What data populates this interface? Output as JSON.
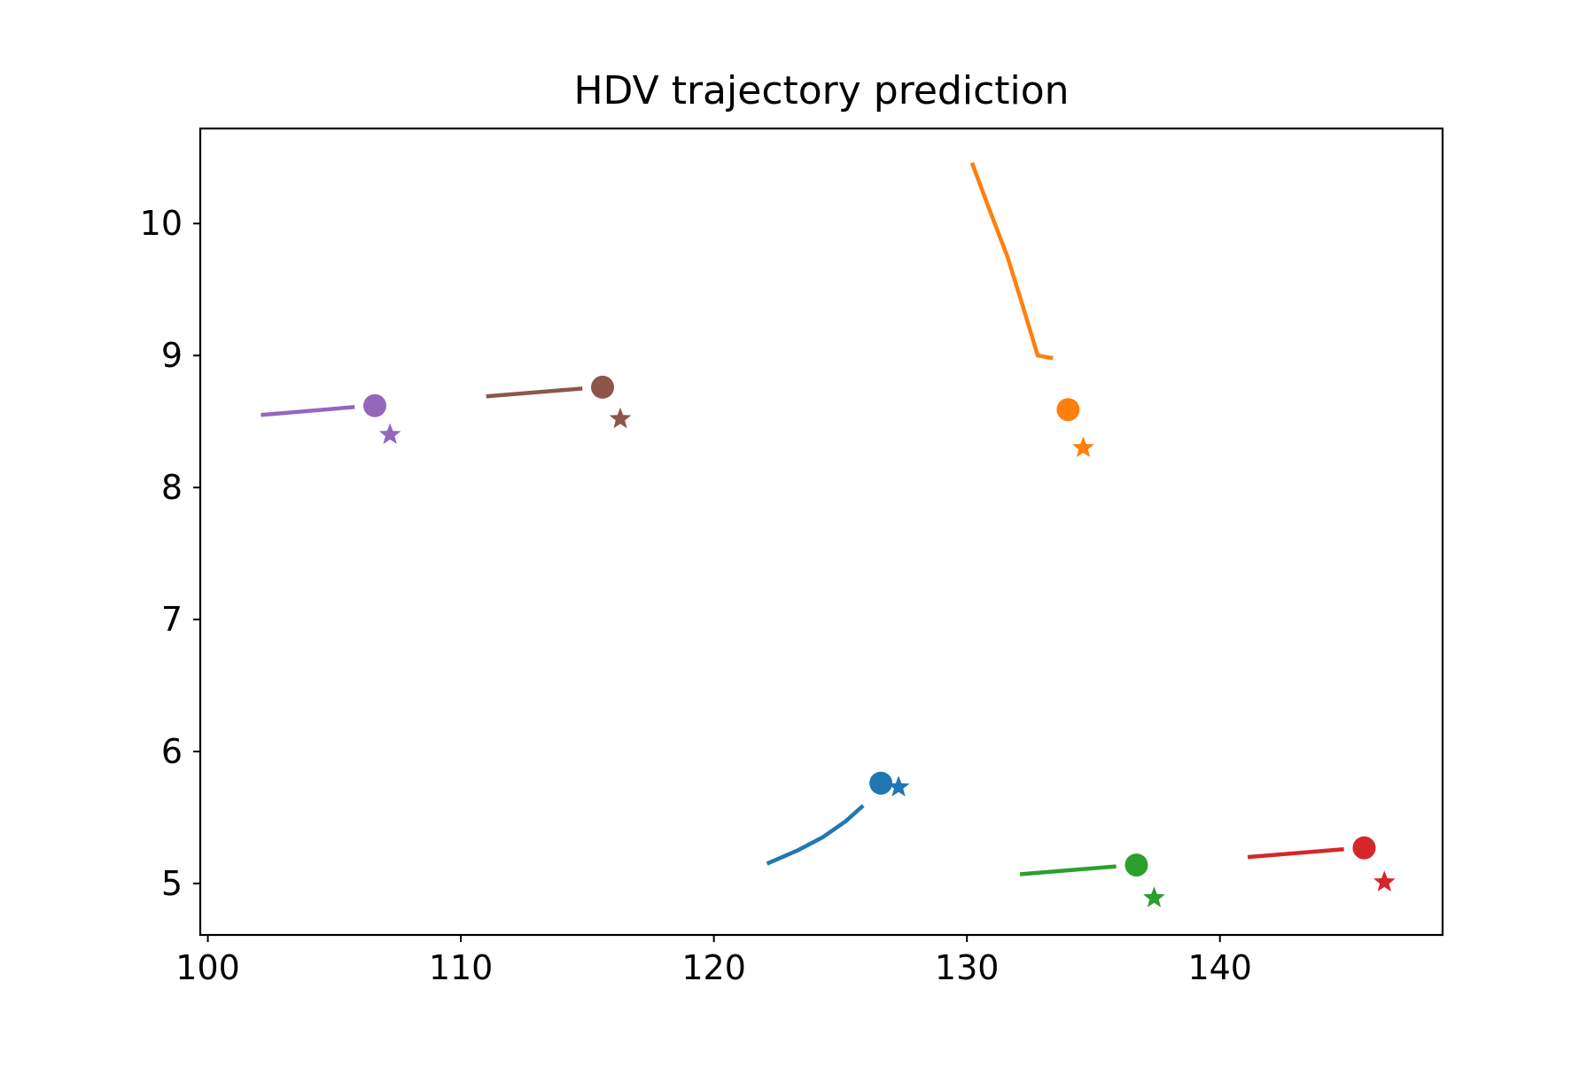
{
  "chart_data": {
    "type": "line",
    "title": "HDV trajectory prediction",
    "xlabel": "",
    "ylabel": "",
    "xlim": [
      99.7,
      148.8
    ],
    "ylim": [
      4.61,
      10.72
    ],
    "xticks": [
      100,
      110,
      120,
      130,
      140
    ],
    "yticks": [
      5,
      6,
      7,
      8,
      9,
      10
    ],
    "grid": false,
    "legend": "none",
    "series": [
      {
        "color": "#1f77b4",
        "line": [
          [
            122.1,
            5.15
          ],
          [
            123.3,
            5.25
          ],
          [
            124.3,
            5.35
          ],
          [
            125.2,
            5.47
          ],
          [
            125.9,
            5.59
          ]
        ],
        "current": [
          126.6,
          5.76
        ],
        "target": [
          127.3,
          5.73
        ]
      },
      {
        "color": "#ff7f0e",
        "line": [
          [
            130.2,
            10.46
          ],
          [
            130.9,
            10.1
          ],
          [
            131.6,
            9.75
          ],
          [
            132.2,
            9.38
          ],
          [
            132.8,
            9.0
          ],
          [
            133.4,
            8.98
          ]
        ],
        "current": [
          134.0,
          8.59
        ],
        "target": [
          134.6,
          8.3
        ]
      },
      {
        "color": "#2ca02c",
        "line": [
          [
            132.1,
            5.07
          ],
          [
            135.9,
            5.13
          ]
        ],
        "current": [
          136.7,
          5.14
        ],
        "target": [
          137.4,
          4.89
        ]
      },
      {
        "color": "#d62728",
        "line": [
          [
            141.1,
            5.2
          ],
          [
            144.9,
            5.26
          ]
        ],
        "current": [
          145.7,
          5.27
        ],
        "target": [
          146.5,
          5.01
        ]
      },
      {
        "color": "#9467bd",
        "line": [
          [
            102.1,
            8.55
          ],
          [
            105.8,
            8.61
          ]
        ],
        "current": [
          106.6,
          8.62
        ],
        "target": [
          107.2,
          8.4
        ]
      },
      {
        "color": "#8c564b",
        "line": [
          [
            111.0,
            8.69
          ],
          [
            114.8,
            8.75
          ]
        ],
        "current": [
          115.6,
          8.76
        ],
        "target": [
          116.3,
          8.52
        ]
      }
    ]
  }
}
